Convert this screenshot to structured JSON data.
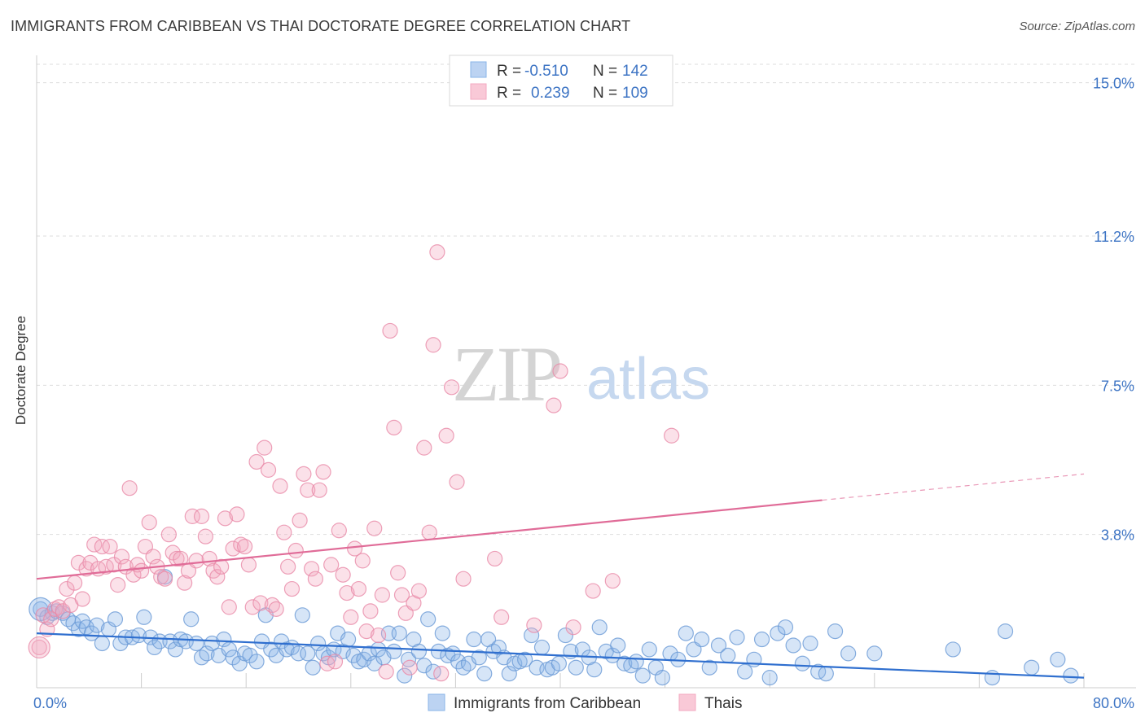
{
  "title": "IMMIGRANTS FROM CARIBBEAN VS THAI DOCTORATE DEGREE CORRELATION CHART",
  "source": "Source: ZipAtlas.com",
  "watermark": {
    "zip": "ZIP",
    "atlas": "atlas"
  },
  "colors": {
    "blue": "#8ab4e8",
    "blue_stroke": "#6a9ad6",
    "blue_line": "#2f6fcf",
    "pink": "#f3a9c0",
    "pink_stroke": "#e889a8",
    "pink_line": "#e06c98",
    "axis_label": "#3d74c4",
    "grid": "#dddddd"
  },
  "legend": {
    "r_label": "R =",
    "n_label": "N =",
    "rows": [
      {
        "r": "-0.510",
        "n": "142",
        "color": "blue"
      },
      {
        "r": "0.239",
        "n": "109",
        "color": "pink"
      }
    ]
  },
  "chart_data": {
    "type": "scatter",
    "title": "IMMIGRANTS FROM CARIBBEAN VS THAI DOCTORATE DEGREE CORRELATION CHART",
    "xlabel": "",
    "ylabel": "Doctorate Degree",
    "xlim": [
      0,
      80
    ],
    "ylim": [
      0,
      15.8
    ],
    "x_tick_labels": [
      {
        "value": 0,
        "label": "0.0%"
      },
      {
        "value": 80,
        "label": "80.0%"
      }
    ],
    "y_tick_labels": [
      {
        "value": 15.0,
        "label": "15.0%"
      },
      {
        "value": 11.2,
        "label": "11.2%"
      },
      {
        "value": 7.5,
        "label": "7.5%"
      },
      {
        "value": 3.8,
        "label": "3.8%"
      }
    ],
    "grid": true,
    "legend_position": "bottom-center",
    "series": [
      {
        "name": "Immigrants from Caribbean",
        "color": "blue",
        "trend": {
          "x0": 0,
          "y0": 1.35,
          "x1": 80,
          "y1": 0.25,
          "solid_until": 80
        },
        "points": [
          [
            0.3,
            1.95
          ],
          [
            0.8,
            1.75
          ],
          [
            1.2,
            1.85
          ],
          [
            1.5,
            1.9
          ],
          [
            2.0,
            1.85
          ],
          [
            2.4,
            1.7
          ],
          [
            2.8,
            1.6
          ],
          [
            3.2,
            1.45
          ],
          [
            3.5,
            1.65
          ],
          [
            3.8,
            1.5
          ],
          [
            4.2,
            1.35
          ],
          [
            4.6,
            1.55
          ],
          [
            5.0,
            1.1
          ],
          [
            5.5,
            1.45
          ],
          [
            6.0,
            1.7
          ],
          [
            6.4,
            1.1
          ],
          [
            6.8,
            1.25
          ],
          [
            7.3,
            1.25
          ],
          [
            7.8,
            1.3
          ],
          [
            8.2,
            1.75
          ],
          [
            8.7,
            1.25
          ],
          [
            9.0,
            1.0
          ],
          [
            9.4,
            1.15
          ],
          [
            9.8,
            2.75
          ],
          [
            10.2,
            1.15
          ],
          [
            10.6,
            0.95
          ],
          [
            11.0,
            1.2
          ],
          [
            11.4,
            1.15
          ],
          [
            11.8,
            1.7
          ],
          [
            12.2,
            1.1
          ],
          [
            12.6,
            0.75
          ],
          [
            13.0,
            0.85
          ],
          [
            13.4,
            1.1
          ],
          [
            13.9,
            0.8
          ],
          [
            14.3,
            1.2
          ],
          [
            14.7,
            0.95
          ],
          [
            15.0,
            0.75
          ],
          [
            15.5,
            0.6
          ],
          [
            15.9,
            0.85
          ],
          [
            16.3,
            0.8
          ],
          [
            16.8,
            0.65
          ],
          [
            17.2,
            1.15
          ],
          [
            17.5,
            1.8
          ],
          [
            17.9,
            0.95
          ],
          [
            18.3,
            0.8
          ],
          [
            18.7,
            1.15
          ],
          [
            19.1,
            0.95
          ],
          [
            19.5,
            1.0
          ],
          [
            20.0,
            0.85
          ],
          [
            20.3,
            1.8
          ],
          [
            20.7,
            0.85
          ],
          [
            21.1,
            0.5
          ],
          [
            21.5,
            1.1
          ],
          [
            21.9,
            0.85
          ],
          [
            22.3,
            0.75
          ],
          [
            22.7,
            0.95
          ],
          [
            23.0,
            1.35
          ],
          [
            23.4,
            0.9
          ],
          [
            23.8,
            1.2
          ],
          [
            24.2,
            0.8
          ],
          [
            24.6,
            0.65
          ],
          [
            25.0,
            0.7
          ],
          [
            25.4,
            0.85
          ],
          [
            25.8,
            0.6
          ],
          [
            26.1,
            0.95
          ],
          [
            26.5,
            0.75
          ],
          [
            26.9,
            1.35
          ],
          [
            27.3,
            0.9
          ],
          [
            27.7,
            1.35
          ],
          [
            28.1,
            0.3
          ],
          [
            28.4,
            0.7
          ],
          [
            28.8,
            1.2
          ],
          [
            29.2,
            0.9
          ],
          [
            29.6,
            0.55
          ],
          [
            29.9,
            1.7
          ],
          [
            30.3,
            0.4
          ],
          [
            30.7,
            0.9
          ],
          [
            31.0,
            1.35
          ],
          [
            31.4,
            0.8
          ],
          [
            31.8,
            0.85
          ],
          [
            32.2,
            0.65
          ],
          [
            32.6,
            0.5
          ],
          [
            33.0,
            0.6
          ],
          [
            33.4,
            1.2
          ],
          [
            33.8,
            0.75
          ],
          [
            34.2,
            0.35
          ],
          [
            34.5,
            1.2
          ],
          [
            34.9,
            0.9
          ],
          [
            35.3,
            1.0
          ],
          [
            35.7,
            0.75
          ],
          [
            36.1,
            0.35
          ],
          [
            36.5,
            0.6
          ],
          [
            36.9,
            0.65
          ],
          [
            37.3,
            0.7
          ],
          [
            37.8,
            1.3
          ],
          [
            38.2,
            0.5
          ],
          [
            38.6,
            1.0
          ],
          [
            39.0,
            0.45
          ],
          [
            39.4,
            0.5
          ],
          [
            39.9,
            0.6
          ],
          [
            40.4,
            1.3
          ],
          [
            40.8,
            0.9
          ],
          [
            41.2,
            0.5
          ],
          [
            41.7,
            0.95
          ],
          [
            42.2,
            0.75
          ],
          [
            42.6,
            0.45
          ],
          [
            43.0,
            1.5
          ],
          [
            43.5,
            0.9
          ],
          [
            44.0,
            0.8
          ],
          [
            44.4,
            1.05
          ],
          [
            44.9,
            0.6
          ],
          [
            45.4,
            0.55
          ],
          [
            45.8,
            0.65
          ],
          [
            46.3,
            0.3
          ],
          [
            46.8,
            0.95
          ],
          [
            47.3,
            0.5
          ],
          [
            47.8,
            0.25
          ],
          [
            48.4,
            0.85
          ],
          [
            49.0,
            0.7
          ],
          [
            49.6,
            1.35
          ],
          [
            50.2,
            0.95
          ],
          [
            50.8,
            1.2
          ],
          [
            51.4,
            0.5
          ],
          [
            52.1,
            1.05
          ],
          [
            52.8,
            0.8
          ],
          [
            53.5,
            1.25
          ],
          [
            54.1,
            0.4
          ],
          [
            54.8,
            0.7
          ],
          [
            55.4,
            1.2
          ],
          [
            56.0,
            0.25
          ],
          [
            56.6,
            1.35
          ],
          [
            57.2,
            1.5
          ],
          [
            57.8,
            1.05
          ],
          [
            58.5,
            0.6
          ],
          [
            59.1,
            1.1
          ],
          [
            59.7,
            0.4
          ],
          [
            60.3,
            0.35
          ],
          [
            61.0,
            1.4
          ],
          [
            62.0,
            0.85
          ],
          [
            64.0,
            0.85
          ],
          [
            70.0,
            0.95
          ],
          [
            73.0,
            0.25
          ],
          [
            74.0,
            1.4
          ],
          [
            76.0,
            0.5
          ],
          [
            78.0,
            0.7
          ],
          [
            79.0,
            0.3
          ]
        ]
      },
      {
        "name": "Thais",
        "color": "pink",
        "trend": {
          "x0": 0,
          "y0": 2.7,
          "x1": 80,
          "y1": 5.3,
          "solid_until": 60
        },
        "points": [
          [
            0.2,
            1.0
          ],
          [
            0.5,
            1.8
          ],
          [
            0.8,
            1.45
          ],
          [
            1.1,
            1.7
          ],
          [
            1.4,
            1.95
          ],
          [
            1.7,
            2.0
          ],
          [
            2.0,
            1.9
          ],
          [
            2.3,
            2.45
          ],
          [
            2.6,
            2.05
          ],
          [
            2.9,
            2.6
          ],
          [
            3.2,
            3.1
          ],
          [
            3.5,
            2.2
          ],
          [
            3.8,
            2.95
          ],
          [
            4.1,
            3.1
          ],
          [
            4.4,
            3.55
          ],
          [
            4.7,
            2.95
          ],
          [
            5.0,
            3.5
          ],
          [
            5.3,
            3.0
          ],
          [
            5.6,
            3.5
          ],
          [
            5.9,
            3.05
          ],
          [
            6.2,
            2.55
          ],
          [
            6.5,
            3.25
          ],
          [
            6.8,
            3.0
          ],
          [
            7.1,
            4.95
          ],
          [
            7.4,
            2.8
          ],
          [
            7.7,
            3.05
          ],
          [
            8.0,
            2.9
          ],
          [
            8.3,
            3.5
          ],
          [
            8.6,
            4.1
          ],
          [
            8.9,
            3.25
          ],
          [
            9.2,
            3.0
          ],
          [
            9.5,
            2.75
          ],
          [
            9.8,
            2.7
          ],
          [
            10.1,
            3.8
          ],
          [
            10.4,
            3.35
          ],
          [
            10.7,
            3.2
          ],
          [
            11.0,
            3.2
          ],
          [
            11.3,
            2.6
          ],
          [
            11.6,
            2.9
          ],
          [
            11.9,
            4.25
          ],
          [
            12.2,
            3.15
          ],
          [
            12.6,
            4.25
          ],
          [
            12.9,
            3.75
          ],
          [
            13.2,
            3.2
          ],
          [
            13.5,
            2.9
          ],
          [
            13.8,
            2.75
          ],
          [
            14.1,
            3.0
          ],
          [
            14.4,
            4.2
          ],
          [
            14.7,
            2.0
          ],
          [
            15.0,
            3.45
          ],
          [
            15.3,
            4.3
          ],
          [
            15.6,
            3.55
          ],
          [
            15.9,
            3.5
          ],
          [
            16.2,
            3.05
          ],
          [
            16.5,
            2.0
          ],
          [
            16.8,
            5.6
          ],
          [
            17.1,
            2.1
          ],
          [
            17.4,
            5.95
          ],
          [
            17.7,
            5.4
          ],
          [
            18.0,
            2.05
          ],
          [
            18.3,
            1.95
          ],
          [
            18.6,
            5.0
          ],
          [
            18.9,
            3.85
          ],
          [
            19.2,
            3.0
          ],
          [
            19.5,
            2.45
          ],
          [
            19.8,
            3.4
          ],
          [
            20.1,
            4.15
          ],
          [
            20.4,
            5.3
          ],
          [
            20.7,
            4.9
          ],
          [
            21.0,
            2.95
          ],
          [
            21.3,
            2.7
          ],
          [
            21.6,
            4.9
          ],
          [
            21.9,
            5.35
          ],
          [
            22.2,
            0.6
          ],
          [
            22.5,
            3.05
          ],
          [
            22.8,
            0.65
          ],
          [
            23.1,
            3.9
          ],
          [
            23.4,
            2.8
          ],
          [
            23.7,
            2.35
          ],
          [
            24.0,
            1.75
          ],
          [
            24.3,
            3.45
          ],
          [
            24.6,
            2.45
          ],
          [
            24.9,
            3.15
          ],
          [
            25.2,
            1.4
          ],
          [
            25.5,
            1.9
          ],
          [
            25.8,
            3.95
          ],
          [
            26.1,
            1.3
          ],
          [
            26.4,
            2.3
          ],
          [
            26.7,
            0.4
          ],
          [
            27.0,
            8.85
          ],
          [
            27.3,
            6.45
          ],
          [
            27.6,
            2.85
          ],
          [
            27.9,
            2.3
          ],
          [
            28.2,
            1.85
          ],
          [
            28.5,
            0.5
          ],
          [
            28.8,
            2.1
          ],
          [
            29.2,
            2.4
          ],
          [
            29.6,
            5.95
          ],
          [
            30.0,
            3.85
          ],
          [
            30.3,
            8.5
          ],
          [
            30.6,
            10.8
          ],
          [
            30.9,
            0.35
          ],
          [
            31.3,
            6.25
          ],
          [
            31.7,
            7.45
          ],
          [
            32.1,
            5.1
          ],
          [
            32.6,
            2.7
          ],
          [
            35.0,
            3.2
          ],
          [
            35.5,
            1.75
          ],
          [
            38.0,
            1.55
          ],
          [
            39.5,
            7.0
          ],
          [
            40.0,
            7.85
          ],
          [
            41.0,
            1.5
          ],
          [
            42.5,
            2.4
          ],
          [
            44.0,
            2.65
          ],
          [
            48.5,
            6.25
          ]
        ]
      }
    ]
  },
  "bottom_legend": [
    "Immigrants from Caribbean",
    "Thais"
  ]
}
